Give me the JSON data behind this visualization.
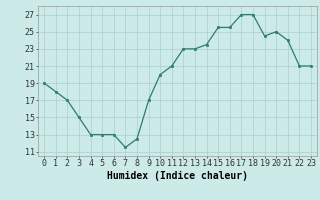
{
  "x": [
    0,
    1,
    2,
    3,
    4,
    5,
    6,
    7,
    8,
    9,
    10,
    11,
    12,
    13,
    14,
    15,
    16,
    17,
    18,
    19,
    20,
    21,
    22,
    23
  ],
  "y": [
    19,
    18,
    17,
    15,
    13,
    13,
    13,
    11.5,
    12.5,
    17,
    20,
    21,
    23,
    23,
    23.5,
    25.5,
    25.5,
    27,
    27,
    24.5,
    25,
    24,
    21,
    21
  ],
  "line_color": "#2e7d6e",
  "marker_color": "#2e7d6e",
  "bg_color": "#cceae7",
  "grid_color": "#aacfcc",
  "xlabel": "Humidex (Indice chaleur)",
  "ylabel_ticks": [
    11,
    13,
    15,
    17,
    19,
    21,
    23,
    25,
    27
  ],
  "xtick_positions": [
    0,
    1,
    2,
    3,
    4,
    5,
    6,
    7,
    8,
    9,
    10,
    11,
    12,
    13,
    14,
    15,
    16,
    17,
    18,
    19,
    20,
    21,
    22,
    23
  ],
  "xtick_labels": [
    "0",
    "1",
    "2",
    "3",
    "4",
    "5",
    "6",
    "7",
    "8",
    "9",
    "10",
    "11",
    "12",
    "13",
    "14",
    "15",
    "16",
    "17",
    "18",
    "19",
    "20",
    "21",
    "22",
    "23"
  ],
  "ylim": [
    10.5,
    28
  ],
  "xlim": [
    -0.5,
    23.5
  ],
  "axis_fontsize": 7,
  "tick_fontsize": 6
}
